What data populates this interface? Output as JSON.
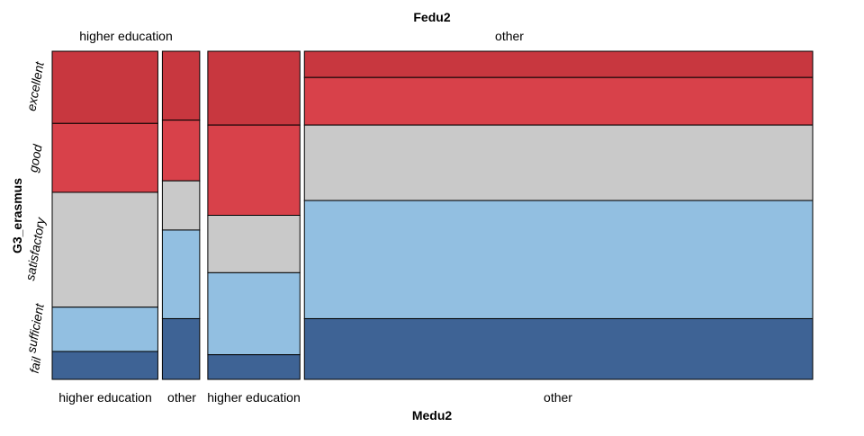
{
  "chart_data": {
    "type": "mosaic",
    "top_variable": "Fedu2",
    "bottom_variable": "Medu2",
    "left_variable": "G3_erasmus",
    "fedu_levels": [
      "higher education",
      "other"
    ],
    "medu_levels": [
      "higher education",
      "other",
      "higher education",
      "other"
    ],
    "row_levels": [
      "excellent",
      "good",
      "satisfactory",
      "sufficient",
      "fail"
    ],
    "colors": {
      "excellent": "#c8373f",
      "good": "#d8414a",
      "satisfactory": "#c9c9c9",
      "sufficient": "#92bfe1",
      "fail": "#3e6395"
    },
    "cells": [
      {
        "fedu": "higher education",
        "medu": "higher education",
        "width": 0.1373,
        "proportions": {
          "excellent": 0.22,
          "good": 0.21,
          "satisfactory": 0.35,
          "sufficient": 0.135,
          "fail": 0.085
        }
      },
      {
        "fedu": "higher education",
        "medu": "other",
        "width": 0.0485,
        "proportions": {
          "excellent": 0.21,
          "good": 0.185,
          "satisfactory": 0.15,
          "sufficient": 0.27,
          "fail": 0.185
        }
      },
      {
        "fedu": "other",
        "medu": "higher education",
        "width": 0.1197,
        "proportions": {
          "excellent": 0.225,
          "good": 0.275,
          "satisfactory": 0.175,
          "sufficient": 0.25,
          "fail": 0.075
        }
      },
      {
        "fedu": "other",
        "medu": "other",
        "width": 0.6604,
        "proportions": {
          "excellent": 0.08,
          "good": 0.145,
          "satisfactory": 0.23,
          "sufficient": 0.36,
          "fail": 0.185
        }
      }
    ],
    "left_labels": [
      "excellent",
      "good",
      "satisfactory",
      "sufficient",
      "fail"
    ]
  }
}
